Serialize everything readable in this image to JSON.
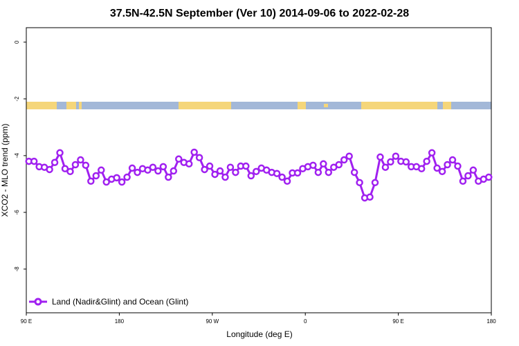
{
  "chart_data": {
    "type": "line",
    "title": "37.5N-42.5N September (Ver 10)   2014-09-06 to 2022-02-28",
    "xlabel": "Longitude (deg E)",
    "ylabel": "XCO2 - MLO trend (ppm)",
    "xlim": [
      90,
      540
    ],
    "xticks": [
      {
        "value": 90,
        "label": "90 E"
      },
      180,
      {
        "value": 270,
        "label": "90 W"
      },
      {
        "value": 360,
        "label": "0"
      },
      {
        "value": 450,
        "label": "90 E"
      },
      {
        "value": 540,
        "label": "180"
      }
    ],
    "ylim": [
      -9.54,
      0.51
    ],
    "yticks": [
      0,
      -2,
      -4,
      -6,
      -8
    ],
    "legend": "bottom-left",
    "x": [
      92.5,
      97.5,
      102.5,
      107.5,
      112.5,
      117.5,
      122.5,
      127.5,
      132.5,
      137.5,
      142.5,
      147.5,
      152.5,
      157.5,
      162.5,
      167.5,
      172.5,
      177.5,
      182.5,
      187.5,
      192.5,
      197.5,
      202.5,
      207.5,
      212.5,
      217.5,
      222.5,
      227.5,
      232.5,
      237.5,
      242.5,
      247.5,
      252.5,
      257.5,
      262.5,
      267.5,
      272.5,
      277.5,
      282.5,
      287.5,
      292.5,
      297.5,
      302.5,
      307.5,
      312.5,
      317.5,
      322.5,
      327.5,
      332.5,
      337.5,
      342.5,
      347.5,
      352.5,
      357.5,
      362.5,
      367.5,
      372.5,
      377.5,
      382.5,
      387.5,
      392.5,
      397.5,
      402.5,
      407.5,
      412.5,
      417.5,
      422.5,
      427.5,
      432.5,
      437.5,
      442.5,
      447.5,
      452.5,
      457.5,
      462.5,
      467.5,
      472.5,
      477.5,
      482.5,
      487.5,
      492.5,
      497.5,
      502.5,
      507.5,
      512.5,
      517.5,
      522.5,
      527.5,
      532.5,
      537.5
    ],
    "series": [
      {
        "name": "Land (Nadir&Glint) and Ocean (Glint)",
        "color": "#a020f0",
        "values": [
          -4.2,
          -4.2,
          -4.39,
          -4.41,
          -4.49,
          -4.24,
          -3.9,
          -4.46,
          -4.56,
          -4.32,
          -4.15,
          -4.34,
          -4.9,
          -4.71,
          -4.51,
          -4.93,
          -4.83,
          -4.78,
          -4.93,
          -4.76,
          -4.44,
          -4.59,
          -4.46,
          -4.51,
          -4.41,
          -4.54,
          -4.39,
          -4.76,
          -4.54,
          -4.12,
          -4.24,
          -4.29,
          -3.88,
          -4.07,
          -4.49,
          -4.37,
          -4.66,
          -4.54,
          -4.76,
          -4.41,
          -4.59,
          -4.37,
          -4.37,
          -4.71,
          -4.56,
          -4.44,
          -4.51,
          -4.59,
          -4.63,
          -4.76,
          -4.9,
          -4.61,
          -4.61,
          -4.46,
          -4.39,
          -4.34,
          -4.59,
          -4.29,
          -4.59,
          -4.41,
          -4.32,
          -4.15,
          -4.02,
          -4.59,
          -4.95,
          -5.49,
          -5.46,
          -4.95,
          -4.05,
          -4.41,
          -4.22,
          -4.02,
          -4.2,
          -4.22,
          -4.39,
          -4.39,
          -4.46,
          -4.2,
          -3.9,
          -4.44,
          -4.56,
          -4.32,
          -4.15,
          -4.37,
          -4.9,
          -4.71,
          -4.51,
          -4.9,
          -4.83,
          -4.76
        ]
      }
    ]
  }
}
